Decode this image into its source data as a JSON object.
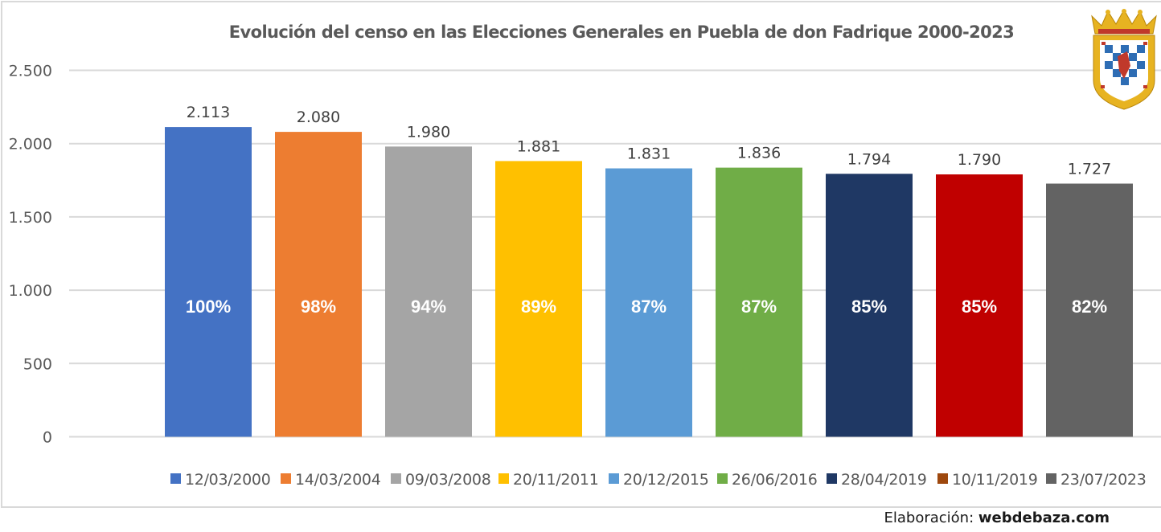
{
  "chart_data": {
    "type": "bar",
    "title": "Evolución del censo en las Elecciones Generales en Puebla de don Fadrique 2000-2023",
    "xlabel": "",
    "ylabel": "",
    "ylim": [
      0,
      2500
    ],
    "yticks": [
      0,
      500,
      1000,
      1500,
      2000,
      2500
    ],
    "ytick_labels": [
      "0",
      "500",
      "1.000",
      "1.500",
      "2.000",
      "2.500"
    ],
    "grid": true,
    "legend_position": "bottom",
    "categories": [
      "12/03/2000",
      "14/03/2004",
      "09/03/2008",
      "20/11/2011",
      "20/12/2015",
      "26/06/2016",
      "28/04/2019",
      "10/11/2019",
      "23/07/2023"
    ],
    "values": [
      2113,
      2080,
      1980,
      1881,
      1831,
      1836,
      1794,
      1790,
      1727
    ],
    "value_labels": [
      "2.113",
      "2.080",
      "1.980",
      "1.881",
      "1.831",
      "1.836",
      "1.794",
      "1.790",
      "1.727"
    ],
    "percent_labels": [
      "100%",
      "98%",
      "94%",
      "89%",
      "87%",
      "87%",
      "85%",
      "85%",
      "82%"
    ],
    "bar_colors": [
      "#4472c4",
      "#ed7d31",
      "#a5a5a5",
      "#ffc000",
      "#5b9bd5",
      "#70ad47",
      "#1f3864",
      "#c00000",
      "#636363"
    ],
    "legend_colors": [
      "#4472c4",
      "#ed7d31",
      "#a5a5a5",
      "#ffc000",
      "#5b9bd5",
      "#70ad47",
      "#1f3864",
      "#9e480e",
      "#636363"
    ]
  },
  "logo": {
    "name": "coat-of-arms-icon"
  },
  "credit": {
    "prefix": "Elaboración: ",
    "site": "webdebaza.com"
  }
}
